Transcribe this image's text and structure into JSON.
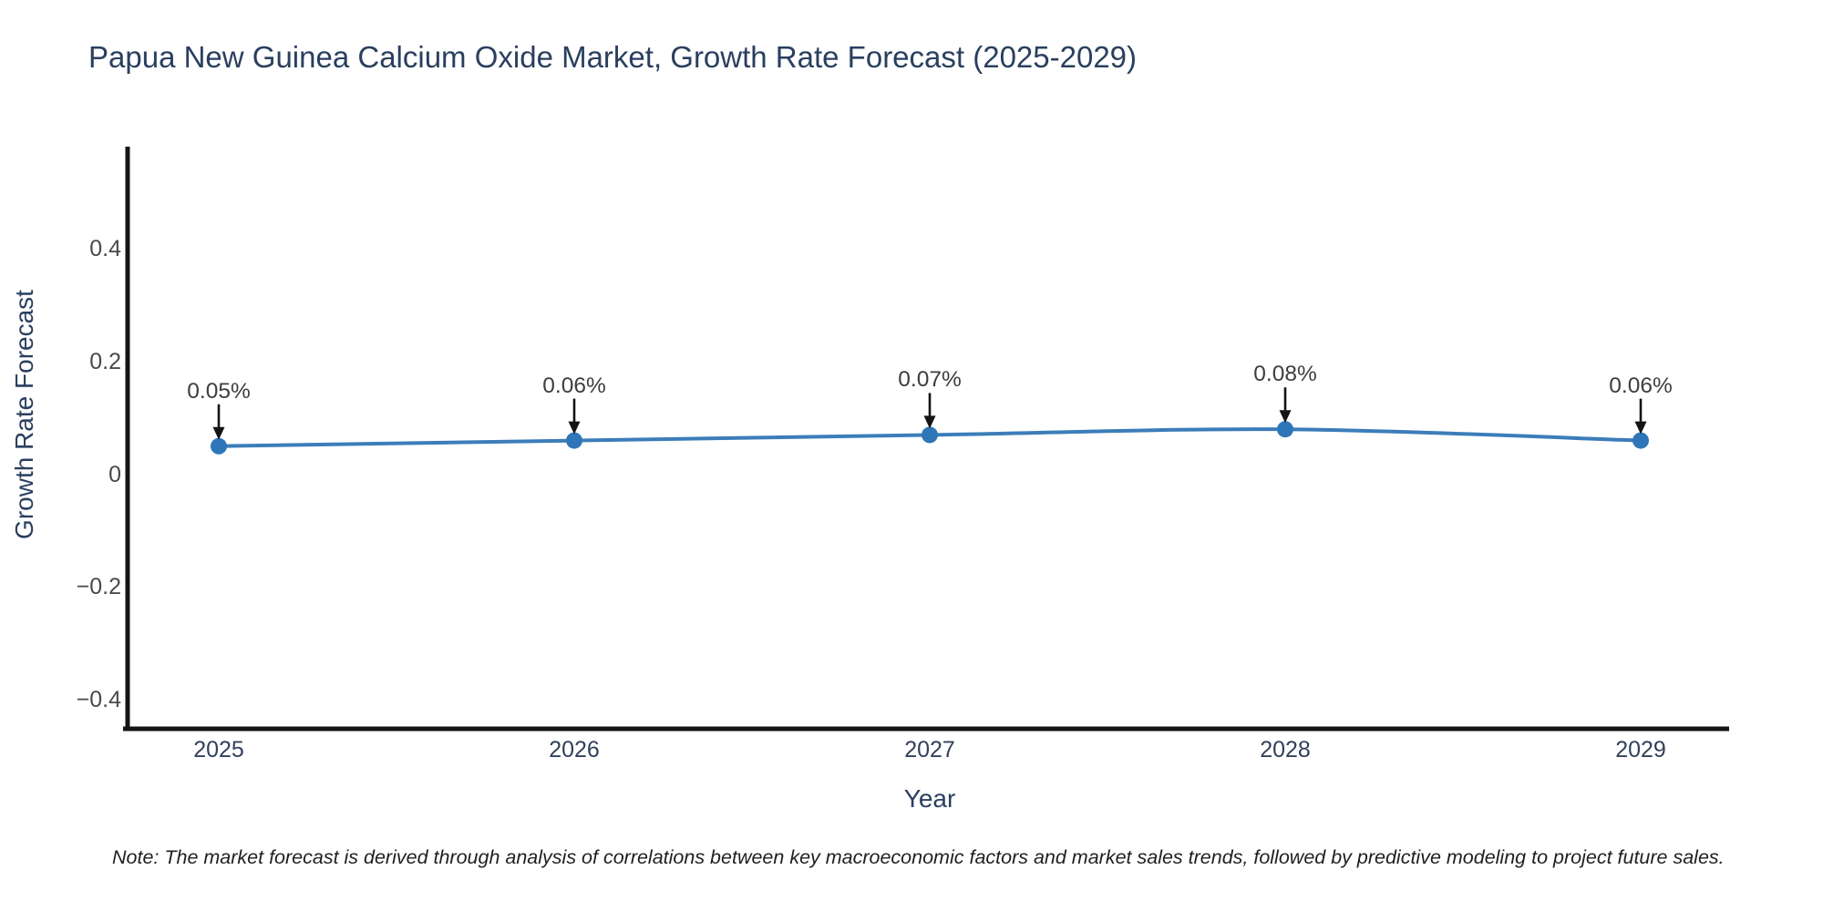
{
  "header": {
    "title": "Papua New Guinea Calcium Oxide Market, Growth Rate Forecast (2025-2029)"
  },
  "axes": {
    "x_title": "Year",
    "y_title": "Growth Rate Forecast"
  },
  "footnote": "Note: The market forecast is derived through analysis of correlations between key macroeconomic factors and market sales trends, followed by predictive modeling to project future sales.",
  "chart_data": {
    "type": "line",
    "title": "Papua New Guinea Calcium Oxide Market, Growth Rate Forecast (2025-2029)",
    "xlabel": "Year",
    "ylabel": "Growth Rate Forecast",
    "categories": [
      "2025",
      "2026",
      "2027",
      "2028",
      "2029"
    ],
    "series": [
      {
        "name": "Growth Rate Forecast",
        "values": [
          0.05,
          0.06,
          0.07,
          0.08,
          0.06
        ]
      }
    ],
    "point_labels": [
      "0.05%",
      "0.06%",
      "0.07%",
      "0.08%",
      "0.06%"
    ],
    "yticks": {
      "values": [
        -0.4,
        -0.2,
        0,
        0.2,
        0.4
      ],
      "labels": [
        "−0.4",
        "−0.2",
        "0",
        "0.2",
        "0.4"
      ]
    },
    "ylim": [
      -0.452,
      0.582
    ],
    "grid": false,
    "legend_position": "none",
    "line_color": "#3c7db9",
    "marker_color": "#2e76b8",
    "axis_color": "#141414",
    "arrow_color": "#141414"
  }
}
